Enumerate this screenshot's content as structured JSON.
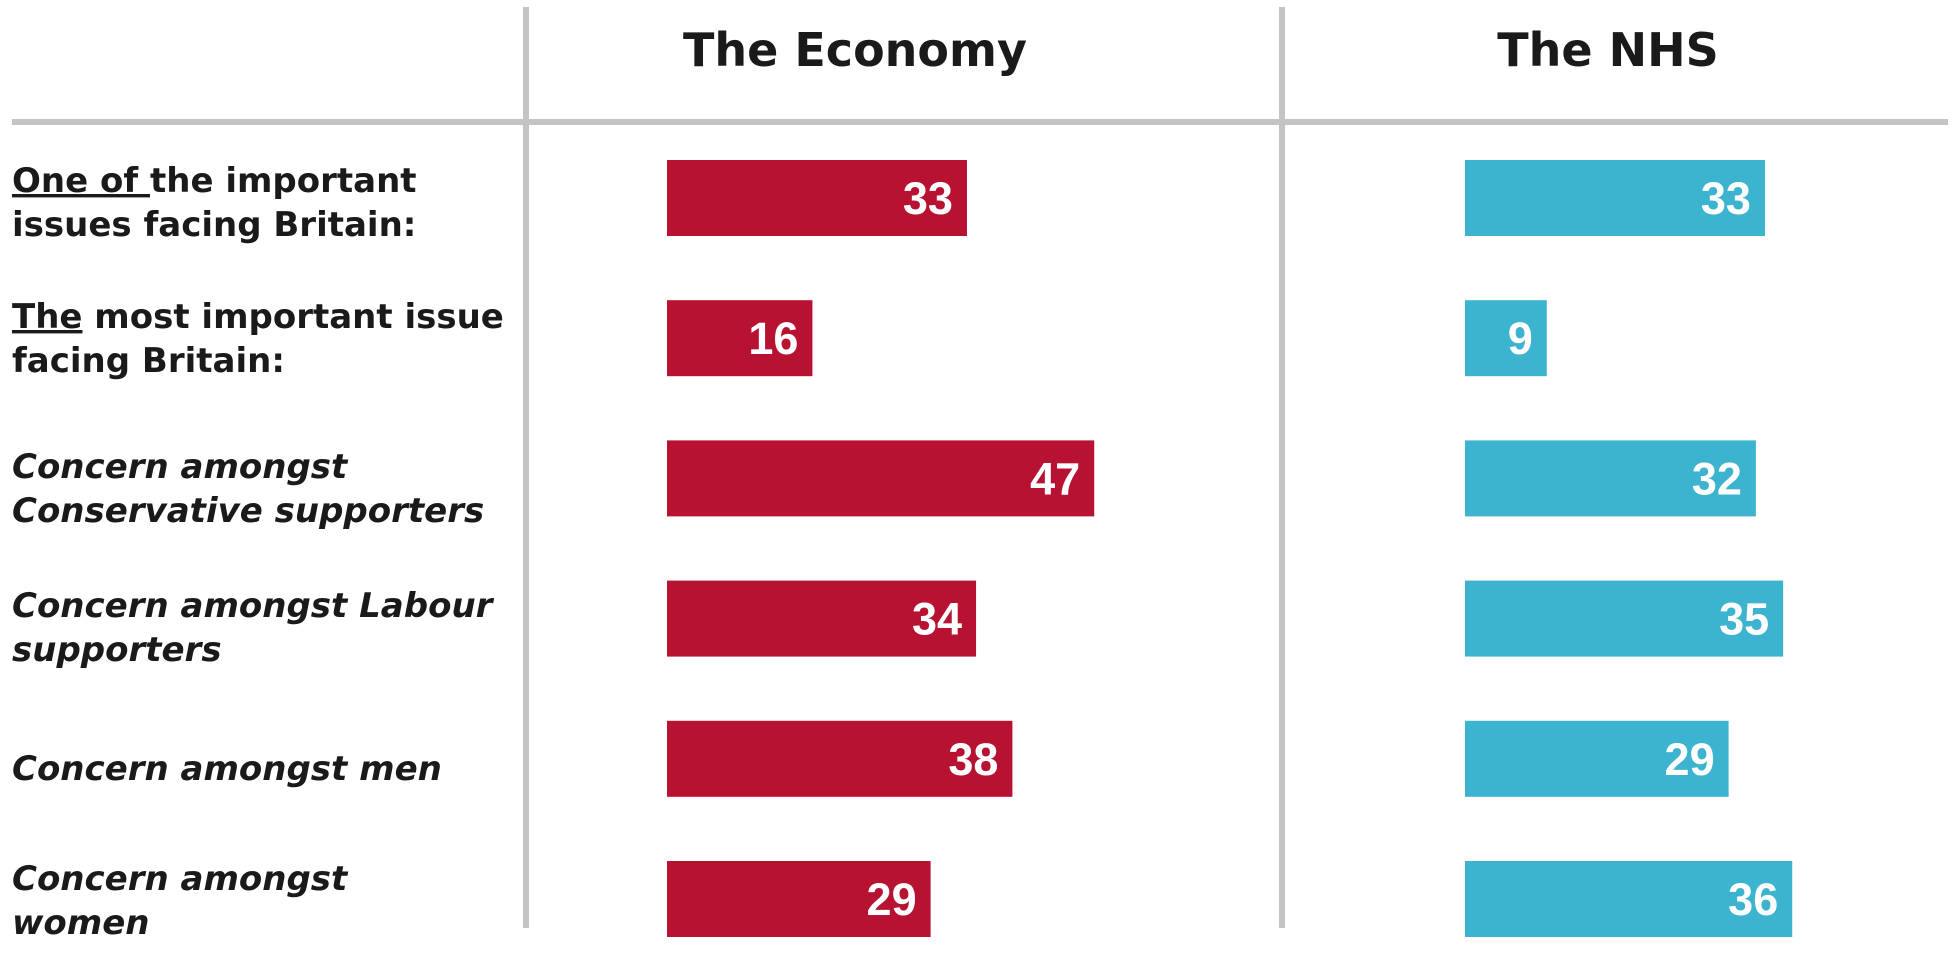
{
  "colors": {
    "economy": "#b81232",
    "nhs": "#3db4cf",
    "rule": "#c4c4c4",
    "text": "#1a1a1a",
    "value_text": "#ffffff"
  },
  "chart_data": {
    "type": "bar",
    "orientation": "horizontal",
    "grid": false,
    "legend": "none",
    "panels": [
      {
        "title": "The Economy",
        "color_key": "economy",
        "values": [
          33,
          16,
          47,
          34,
          38,
          29
        ]
      },
      {
        "title": "The NHS",
        "color_key": "nhs",
        "values": [
          33,
          9,
          32,
          35,
          29,
          36
        ]
      }
    ],
    "categories": [
      {
        "lines": [
          [
            {
              "t": "One of ",
              "u": true
            },
            {
              "t": "the important"
            }
          ],
          [
            {
              "t": "issues facing Britain:"
            }
          ]
        ],
        "italic": false
      },
      {
        "lines": [
          [
            {
              "t": "The",
              "u": true
            },
            {
              "t": " most important issue"
            }
          ],
          [
            {
              "t": "facing Britain:"
            }
          ]
        ],
        "italic": false
      },
      {
        "lines": [
          [
            {
              "t": "Concern amongst"
            }
          ],
          [
            {
              "t": "Conservative supporters"
            }
          ]
        ],
        "italic": true
      },
      {
        "lines": [
          [
            {
              "t": "Concern amongst Labour"
            }
          ],
          [
            {
              "t": "supporters"
            }
          ]
        ],
        "italic": true
      },
      {
        "lines": [
          [
            {
              "t": "Concern amongst men"
            }
          ]
        ],
        "italic": true
      },
      {
        "lines": [
          [
            {
              "t": "Concern amongst"
            }
          ],
          [
            {
              "t": "women"
            }
          ]
        ],
        "italic": true
      }
    ]
  }
}
